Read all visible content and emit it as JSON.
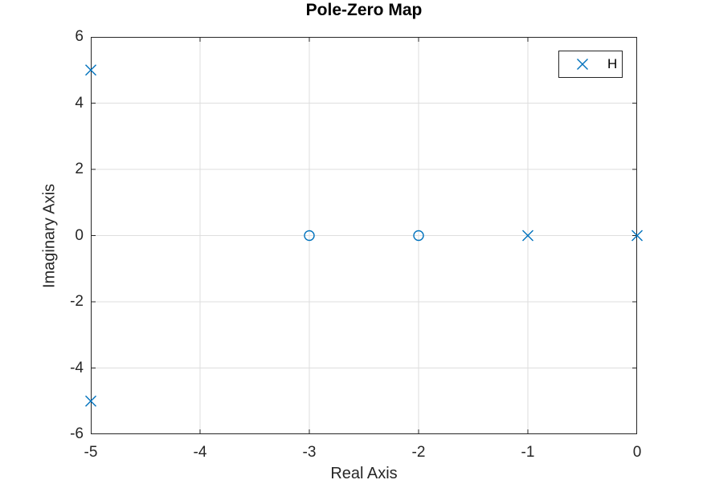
{
  "chart_data": {
    "type": "scatter",
    "title": "Pole-Zero Map",
    "xlabel": "Real Axis",
    "ylabel": "Imaginary Axis",
    "xlim": [
      -5,
      0
    ],
    "ylim": [
      -6,
      6
    ],
    "xticks": [
      -5,
      -4,
      -3,
      -2,
      -1,
      0
    ],
    "yticks": [
      -6,
      -4,
      -2,
      0,
      2,
      4,
      6
    ],
    "grid": true,
    "legend": {
      "position": "top-right",
      "entries": [
        {
          "label": "H",
          "marker": "x"
        }
      ]
    },
    "series": [
      {
        "name": "poles",
        "marker": "x",
        "points": [
          [
            -5,
            5
          ],
          [
            -5,
            -5
          ],
          [
            -1,
            0
          ],
          [
            0,
            0
          ]
        ]
      },
      {
        "name": "zeros",
        "marker": "o",
        "points": [
          [
            -3,
            0
          ],
          [
            -2,
            0
          ]
        ]
      }
    ],
    "colors": {
      "marker": "#0072BD",
      "axis": "#262626",
      "grid": "#dedede",
      "title": "#000000"
    }
  }
}
